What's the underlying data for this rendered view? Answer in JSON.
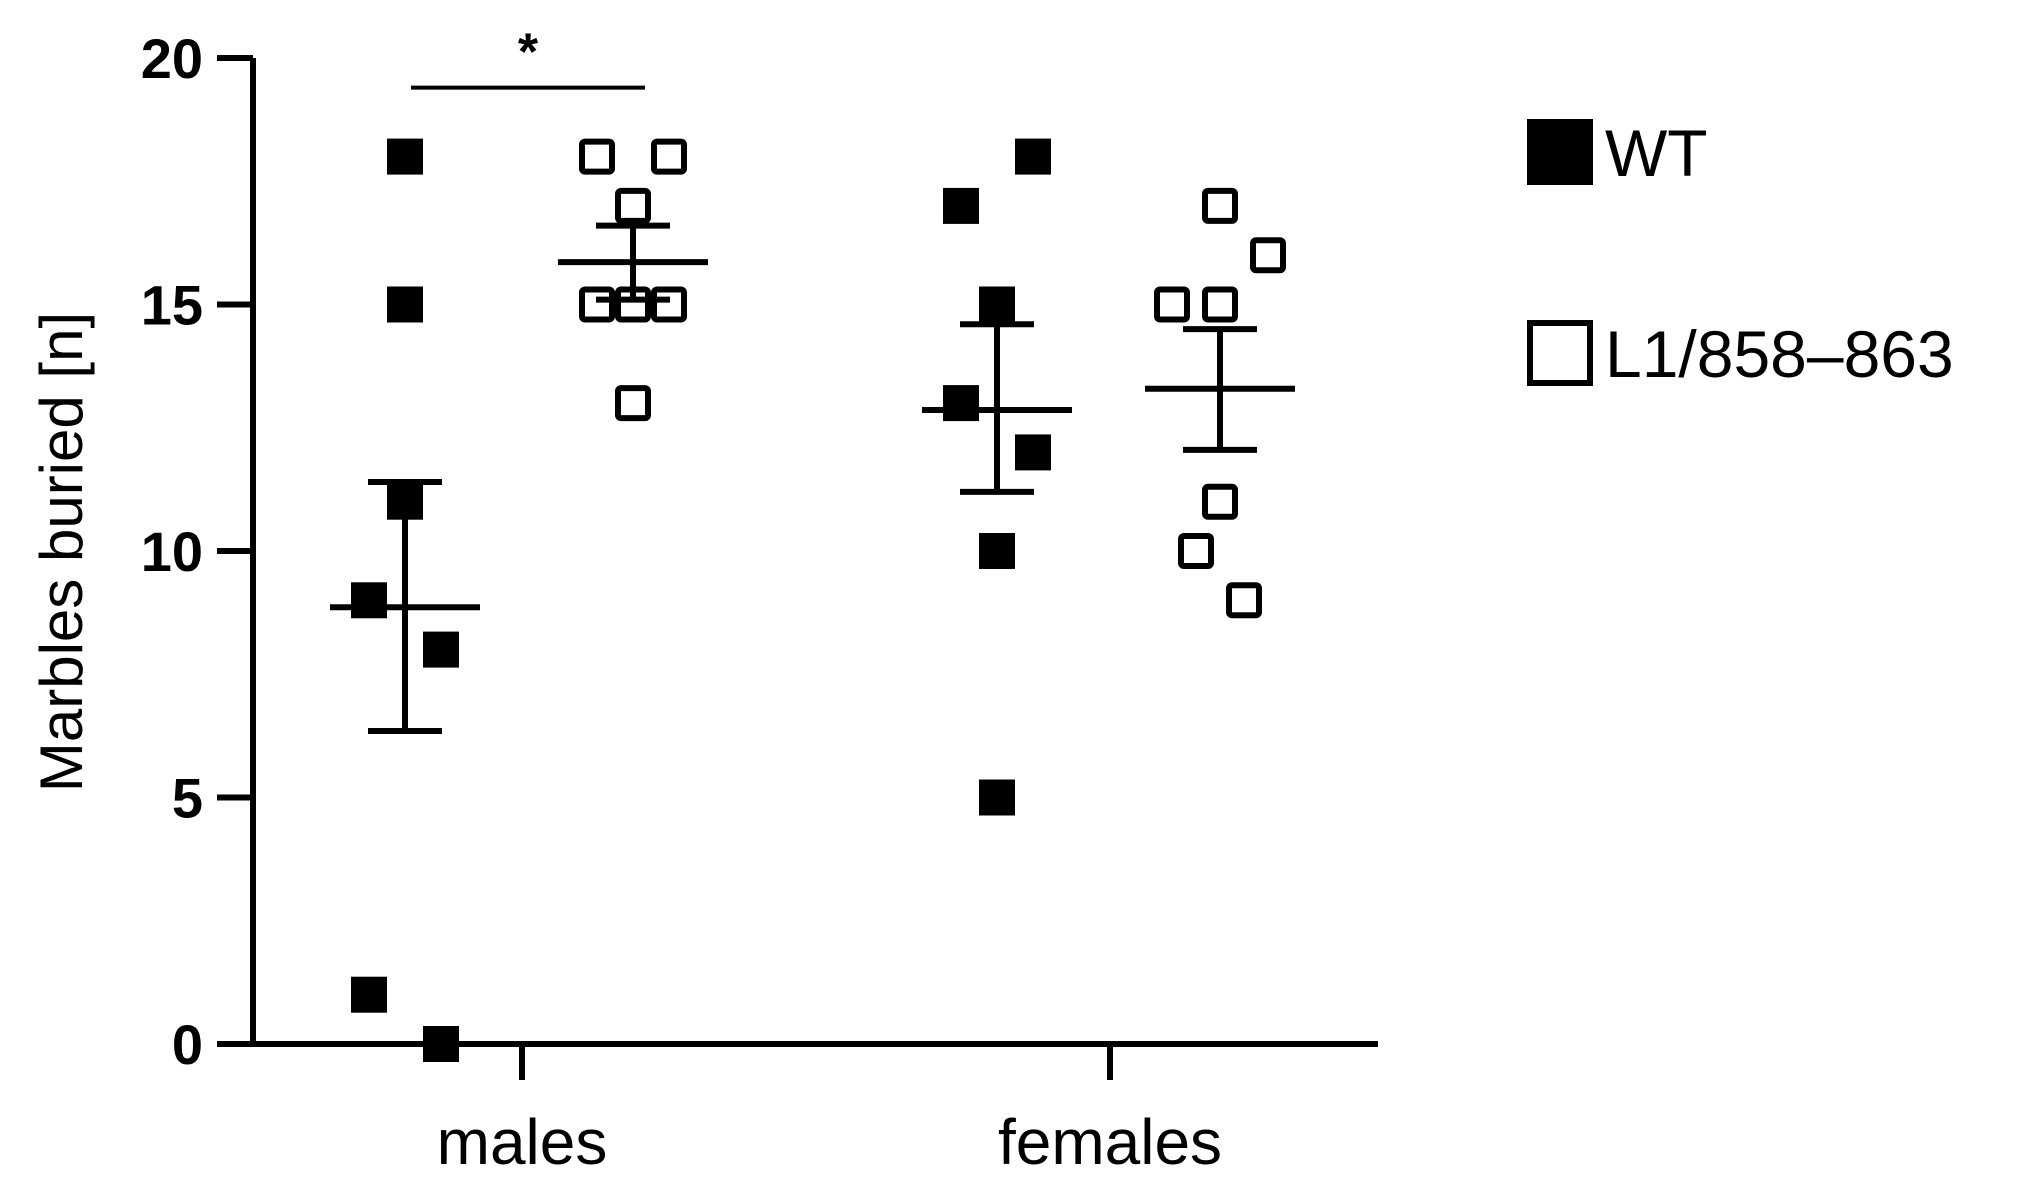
{
  "chart_data": {
    "type": "scatter",
    "ylabel": "Marbles buried [n]",
    "xlabel": "",
    "ylim": [
      0,
      20
    ],
    "yticks": [
      "0",
      "5",
      "10",
      "15",
      "20"
    ],
    "categories": [
      "males",
      "females"
    ],
    "series": [
      {
        "name": "WT",
        "marker": "filled-square",
        "groups": [
          {
            "category": "males",
            "points": [
              18,
              15,
              11,
              9,
              8,
              1,
              0
            ],
            "mean": 8.86,
            "sem_low": 6.35,
            "sem_high": 11.4
          },
          {
            "category": "females",
            "points": [
              18,
              17,
              15,
              13,
              12,
              10,
              5
            ],
            "mean": 12.86,
            "sem_low": 11.2,
            "sem_high": 14.6
          }
        ]
      },
      {
        "name": "L1/858–863",
        "marker": "open-square",
        "groups": [
          {
            "category": "males",
            "points": [
              18,
              18,
              17,
              15,
              15,
              15,
              13
            ],
            "mean": 15.86,
            "sem_low": 15.1,
            "sem_high": 16.6
          },
          {
            "category": "females",
            "points": [
              17,
              16,
              15,
              15,
              11,
              10,
              9
            ],
            "mean": 13.29,
            "sem_low": 12.05,
            "sem_high": 14.5
          }
        ]
      }
    ],
    "annotations": [
      {
        "text": "*",
        "between": [
          "WT males",
          "L1/858–863 males"
        ],
        "y": 19.5
      }
    ],
    "legend": {
      "placement": "top-right",
      "entries": [
        "WT",
        "L1/858–863"
      ]
    }
  },
  "colors": {
    "axis": "#000000",
    "marker": "#000000",
    "background": "#ffffff"
  }
}
